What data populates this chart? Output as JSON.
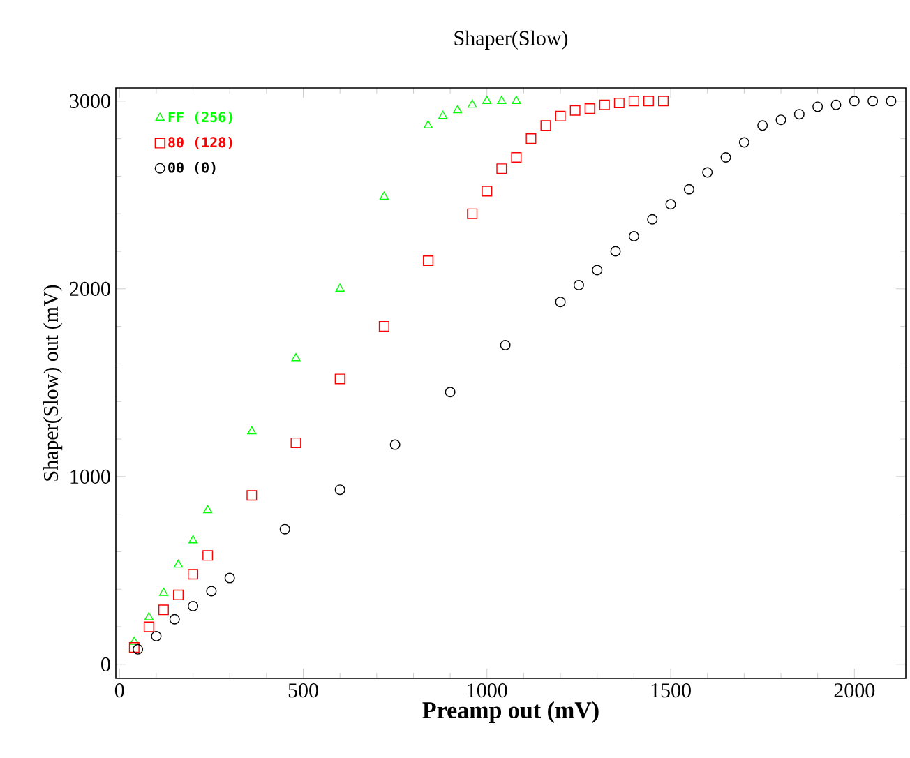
{
  "chart_data": {
    "type": "scatter",
    "title": "Shaper(Slow)",
    "xlabel": "Preamp out (mV)",
    "ylabel": "Shaper(Slow) out (mV)",
    "xlim": [
      -10,
      2140
    ],
    "ylim": [
      -75,
      3070
    ],
    "xticks": [
      0,
      500,
      1000,
      1500,
      2000
    ],
    "yticks": [
      0,
      1000,
      2000,
      3000
    ],
    "legend": "top left",
    "grid": false,
    "series": [
      {
        "name": "FF (256)",
        "color": "#00ff00",
        "marker": "triangle",
        "x": [
          40,
          80,
          120,
          160,
          200,
          240,
          360,
          480,
          600,
          720,
          840,
          880,
          920,
          960,
          1000,
          1040,
          1080
        ],
        "values": [
          120,
          250,
          380,
          530,
          660,
          820,
          1240,
          1630,
          2000,
          2490,
          2870,
          2920,
          2950,
          2980,
          3000,
          3000,
          3000
        ]
      },
      {
        "name": "80 (128)",
        "color": "#ff0000",
        "marker": "square",
        "x": [
          40,
          80,
          120,
          160,
          200,
          240,
          360,
          480,
          600,
          720,
          840,
          960,
          1000,
          1040,
          1080,
          1120,
          1160,
          1200,
          1240,
          1280,
          1320,
          1360,
          1400,
          1440,
          1480
        ],
        "values": [
          90,
          200,
          290,
          370,
          480,
          580,
          900,
          1180,
          1520,
          1800,
          2150,
          2400,
          2520,
          2640,
          2700,
          2800,
          2870,
          2920,
          2950,
          2960,
          2980,
          2990,
          3000,
          3000,
          3000
        ]
      },
      {
        "name": "00 (0)",
        "color": "#000000",
        "marker": "circle",
        "x": [
          50,
          100,
          150,
          200,
          250,
          300,
          450,
          600,
          750,
          900,
          1050,
          1200,
          1250,
          1300,
          1350,
          1400,
          1450,
          1500,
          1550,
          1600,
          1650,
          1700,
          1750,
          1800,
          1850,
          1900,
          1950,
          2000,
          2050,
          2100
        ],
        "values": [
          80,
          150,
          240,
          310,
          390,
          460,
          720,
          930,
          1170,
          1450,
          1700,
          1930,
          2020,
          2100,
          2200,
          2280,
          2370,
          2450,
          2530,
          2620,
          2700,
          2780,
          2870,
          2900,
          2930,
          2970,
          2980,
          3000,
          3000,
          3000
        ]
      }
    ]
  }
}
